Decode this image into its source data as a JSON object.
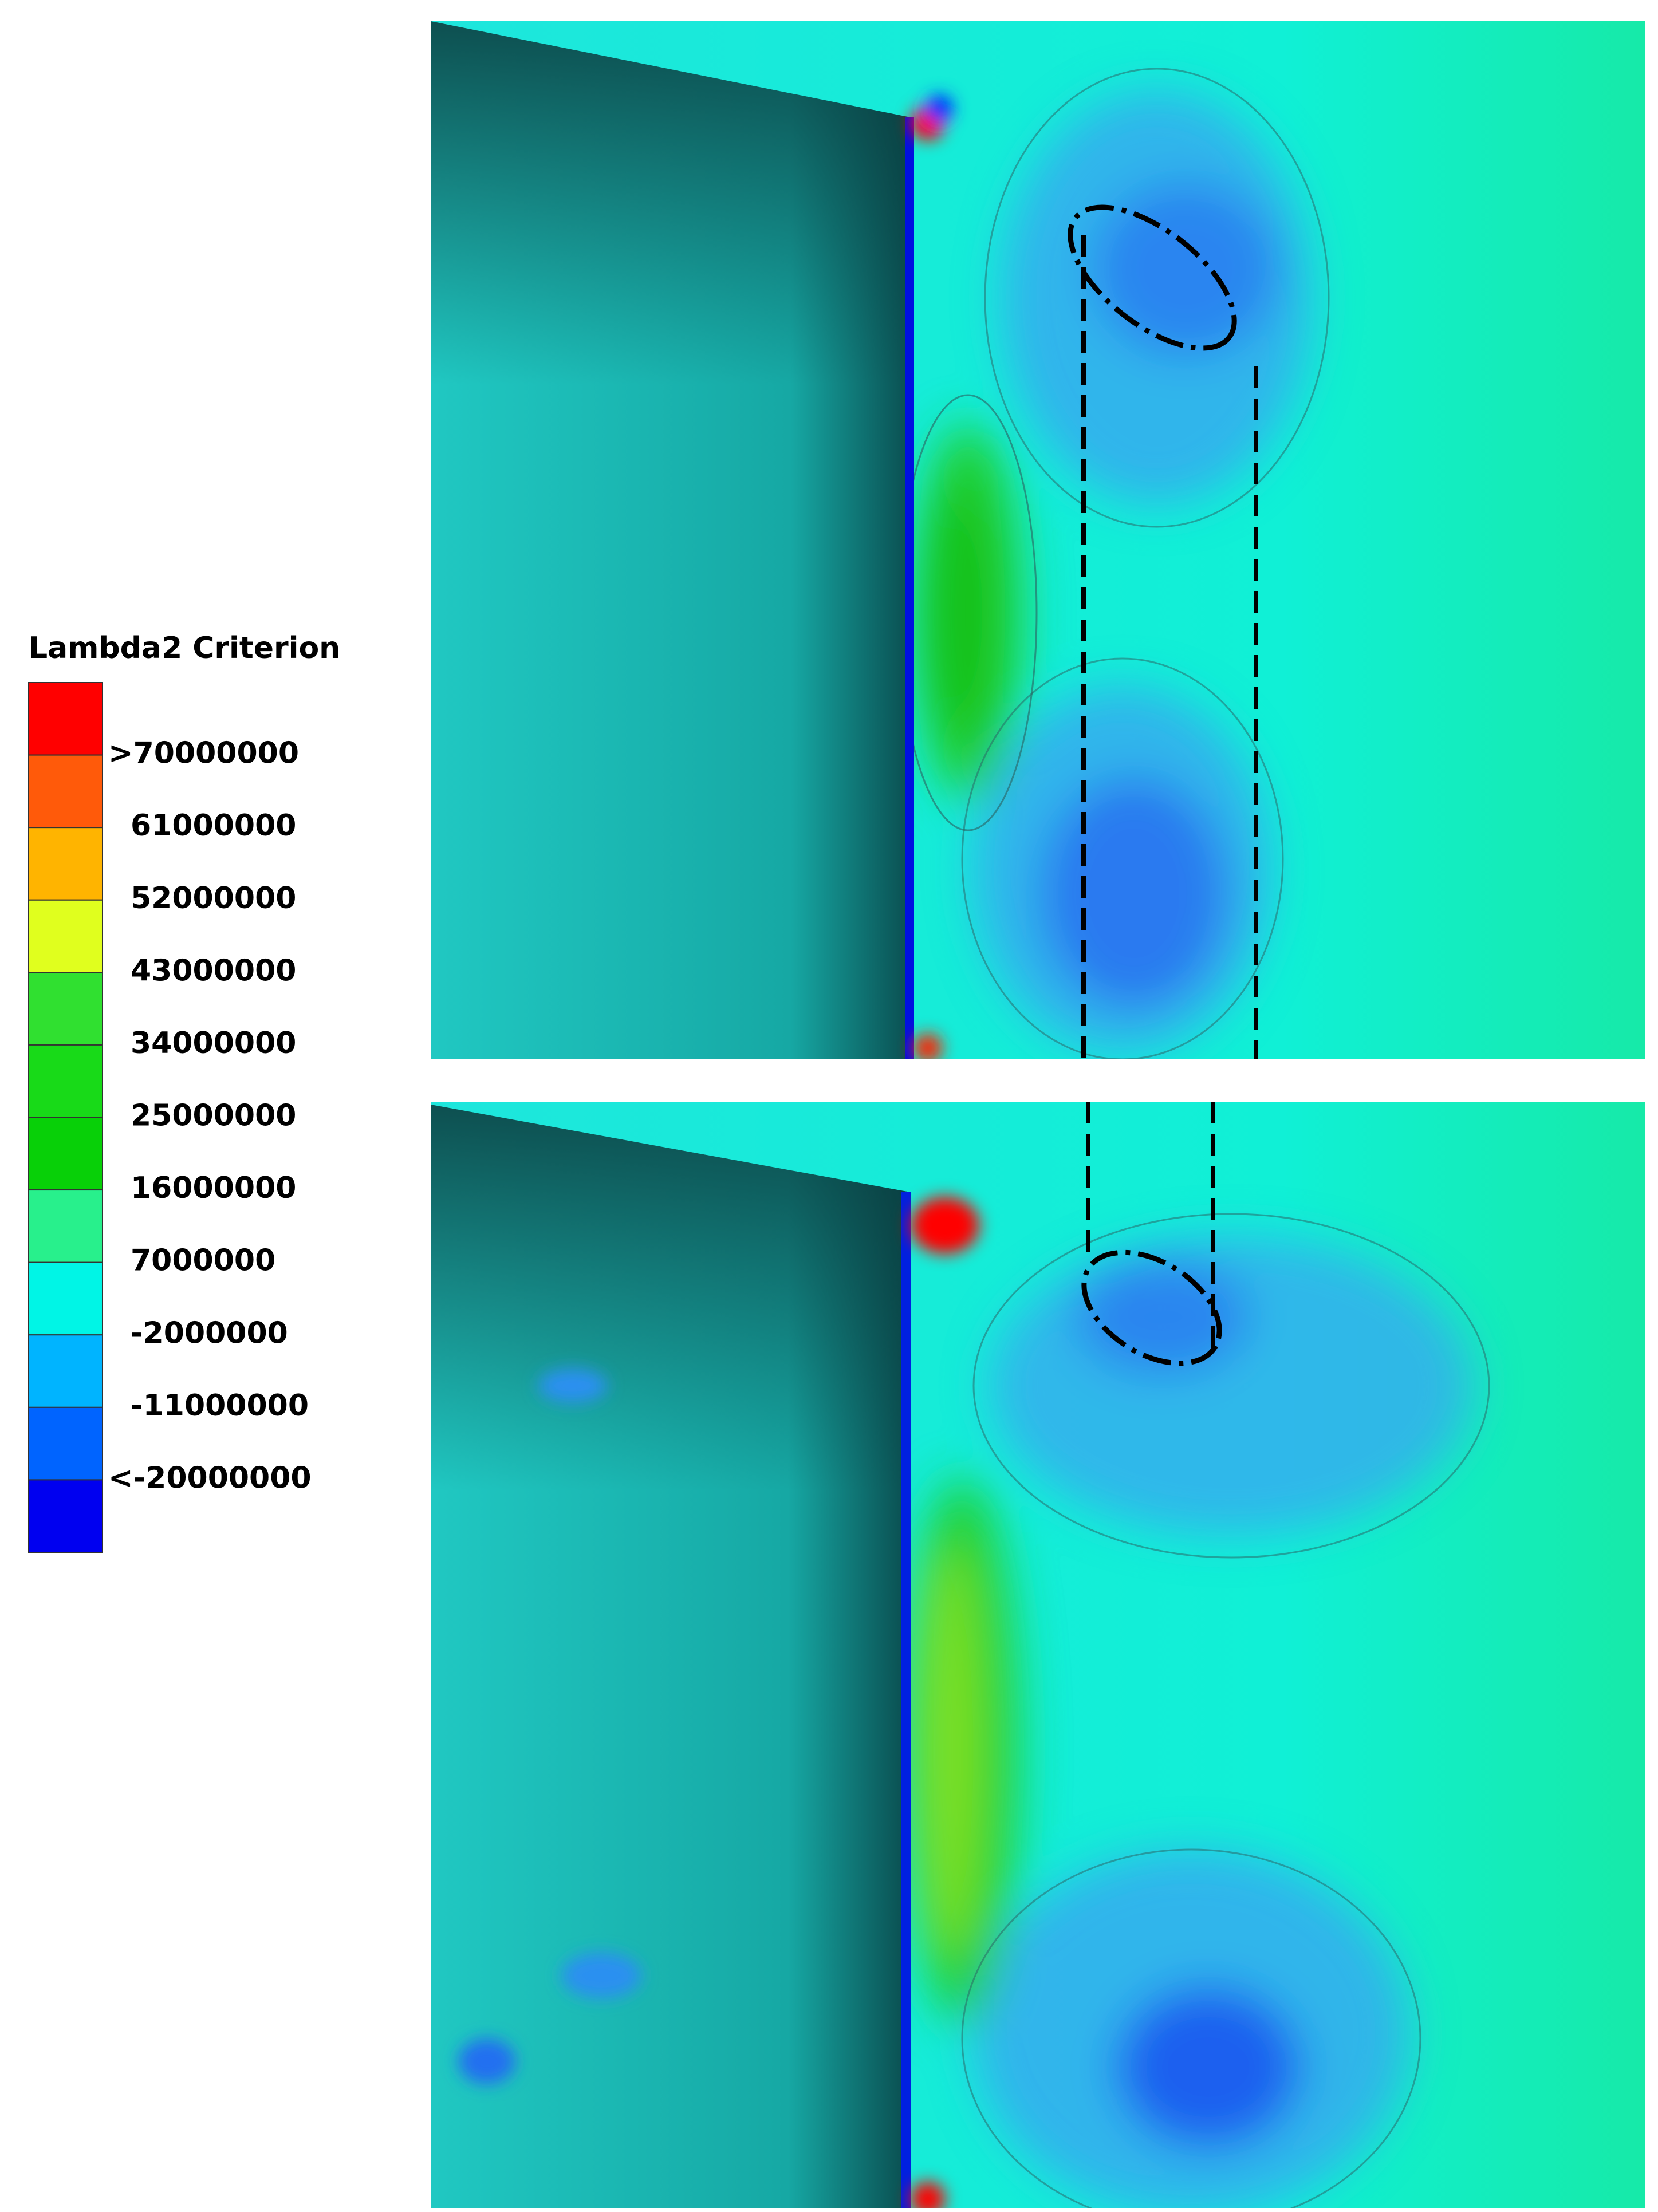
{
  "colorbar": {
    "title": "Lambda2 Criterion",
    "colors": [
      "#ff0000",
      "#ff5a0a",
      "#ffb400",
      "#e0ff1e",
      "#30e030",
      "#18da18",
      "#08d008",
      "#28f08c",
      "#00f5e6",
      "#00b4ff",
      "#0064ff",
      "#0000f0"
    ],
    "labels": [
      ">70000000",
      "61000000",
      "52000000",
      "43000000",
      "34000000",
      "25000000",
      "16000000",
      "7000000",
      "-2000000",
      "-11000000",
      "<-20000000"
    ]
  }
}
